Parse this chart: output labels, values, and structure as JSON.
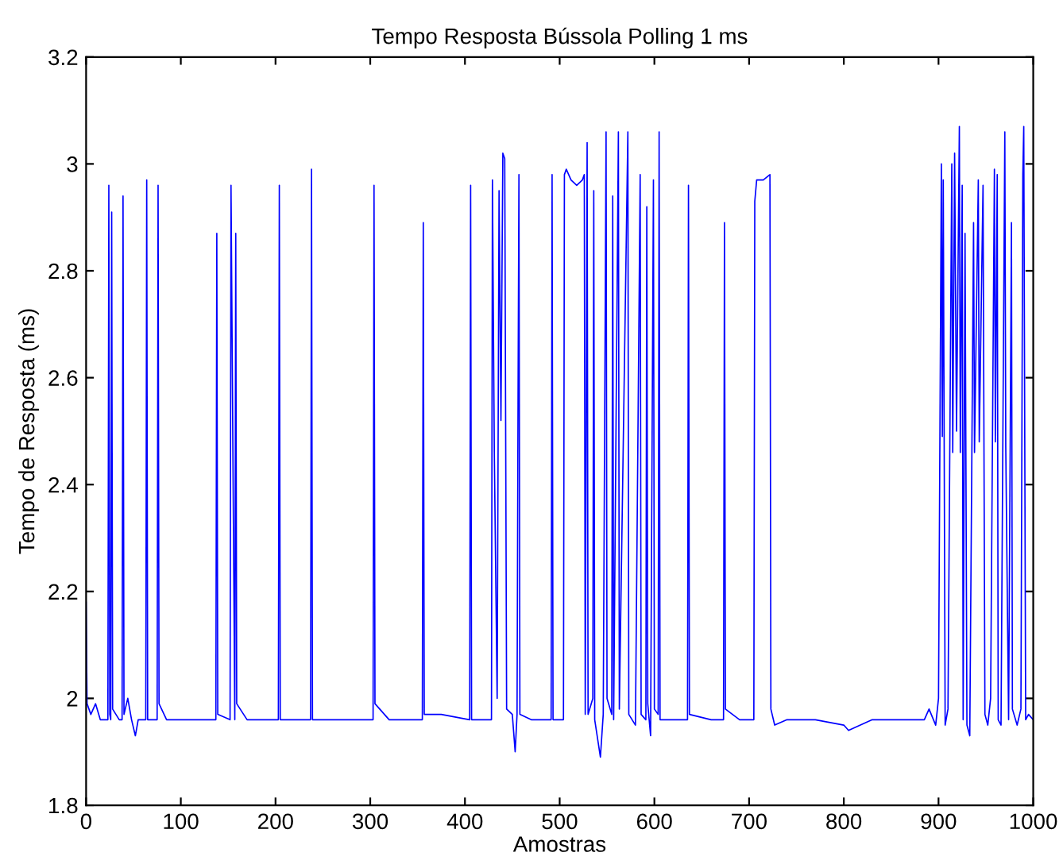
{
  "chart_data": {
    "type": "line",
    "title": "Tempo Resposta Bússola Polling 1 ms",
    "xlabel": "Amostras",
    "ylabel": "Tempo de Resposta (ms)",
    "xlim": [
      0,
      1000
    ],
    "xticks": [
      0,
      100,
      200,
      300,
      400,
      500,
      600,
      700,
      800,
      900,
      1000
    ],
    "ylim": [
      1.8,
      3.2
    ],
    "yticks": [
      {
        "value": 1.8,
        "label": "1.8"
      },
      {
        "value": 2.0,
        "label": "2"
      },
      {
        "value": 2.2,
        "label": "2.2"
      },
      {
        "value": 2.4,
        "label": "2.4"
      },
      {
        "value": 2.6,
        "label": "2.6"
      },
      {
        "value": 2.8,
        "label": "2.8"
      },
      {
        "value": 3.0,
        "label": "3"
      },
      {
        "value": 3.2,
        "label": "3.2"
      }
    ],
    "grid": false,
    "legend": false,
    "series": [
      {
        "color": "#0000ff",
        "x": [
          0,
          1,
          5,
          10,
          15,
          23,
          24,
          25,
          26,
          27,
          28,
          35,
          38,
          39,
          40,
          44,
          48,
          52,
          55,
          63,
          64,
          65,
          75,
          76,
          77,
          85,
          110,
          137,
          138,
          139,
          152,
          153,
          155,
          157,
          158,
          159,
          170,
          195,
          203,
          204,
          205,
          237,
          238,
          239,
          280,
          303,
          304,
          305,
          320,
          355,
          356,
          357,
          375,
          405,
          406,
          407,
          428,
          429,
          431,
          434,
          436,
          438,
          440,
          442,
          444,
          450,
          453,
          455,
          456,
          457,
          458,
          470,
          491,
          492,
          493,
          504,
          505,
          507,
          512,
          518,
          524,
          526,
          527,
          529,
          530,
          535,
          536,
          537,
          543,
          546,
          549,
          550,
          555,
          556,
          557,
          562,
          563,
          572,
          573,
          580,
          585,
          586,
          591,
          592,
          593,
          596,
          599,
          600,
          604,
          605,
          606,
          620,
          635,
          636,
          637,
          660,
          673,
          674,
          675,
          690,
          705,
          706,
          708,
          715,
          722,
          723,
          727,
          740,
          770,
          800,
          805,
          830,
          860,
          885,
          890,
          897,
          900,
          903,
          904,
          905,
          907,
          910,
          914,
          915,
          917,
          919,
          922,
          923,
          925,
          926,
          928,
          930,
          933,
          937,
          938,
          942,
          943,
          947,
          949,
          952,
          955,
          959,
          960,
          962,
          963,
          966,
          970,
          971,
          974,
          977,
          978,
          983,
          987,
          989,
          990,
          992,
          995,
          1000
        ],
        "values": [
          2.18,
          1.99,
          1.97,
          1.99,
          1.96,
          1.96,
          2.96,
          1.97,
          1.96,
          2.91,
          1.98,
          1.96,
          1.96,
          2.94,
          1.97,
          2.0,
          1.96,
          1.93,
          1.96,
          1.96,
          2.97,
          1.96,
          1.96,
          2.96,
          1.99,
          1.96,
          1.96,
          1.96,
          2.87,
          1.97,
          1.96,
          2.96,
          2.46,
          1.96,
          2.87,
          1.99,
          1.96,
          1.96,
          1.96,
          2.96,
          1.96,
          1.96,
          2.99,
          1.96,
          1.96,
          1.96,
          2.96,
          1.99,
          1.96,
          1.96,
          2.89,
          1.97,
          1.97,
          1.96,
          2.96,
          1.96,
          1.96,
          2.97,
          2.46,
          2.0,
          2.95,
          2.52,
          3.02,
          3.01,
          1.98,
          1.97,
          1.9,
          1.97,
          2.53,
          2.98,
          1.97,
          1.96,
          1.96,
          2.98,
          1.96,
          1.96,
          2.98,
          2.99,
          2.97,
          2.96,
          2.97,
          2.98,
          1.97,
          3.04,
          1.97,
          2.0,
          2.95,
          1.96,
          1.89,
          1.97,
          3.06,
          2.0,
          1.97,
          2.94,
          1.96,
          3.06,
          1.98,
          3.06,
          1.97,
          1.95,
          2.98,
          1.97,
          1.96,
          2.92,
          1.99,
          1.93,
          2.97,
          1.98,
          1.97,
          3.06,
          1.96,
          1.96,
          1.96,
          2.96,
          1.97,
          1.96,
          1.96,
          2.89,
          1.98,
          1.96,
          1.96,
          2.93,
          2.97,
          2.97,
          2.98,
          1.98,
          1.95,
          1.96,
          1.96,
          1.95,
          1.94,
          1.96,
          1.96,
          1.96,
          1.98,
          1.95,
          2.0,
          3.0,
          2.49,
          2.97,
          1.95,
          1.98,
          3.0,
          2.46,
          3.02,
          2.5,
          3.07,
          2.46,
          2.96,
          1.96,
          2.87,
          1.95,
          1.93,
          2.89,
          2.46,
          2.97,
          2.48,
          2.96,
          1.97,
          1.95,
          2.0,
          2.99,
          2.48,
          2.98,
          1.96,
          1.95,
          3.06,
          2.47,
          1.96,
          2.89,
          1.98,
          1.95,
          1.98,
          2.98,
          3.07,
          1.96,
          1.97,
          1.96
        ]
      }
    ]
  }
}
